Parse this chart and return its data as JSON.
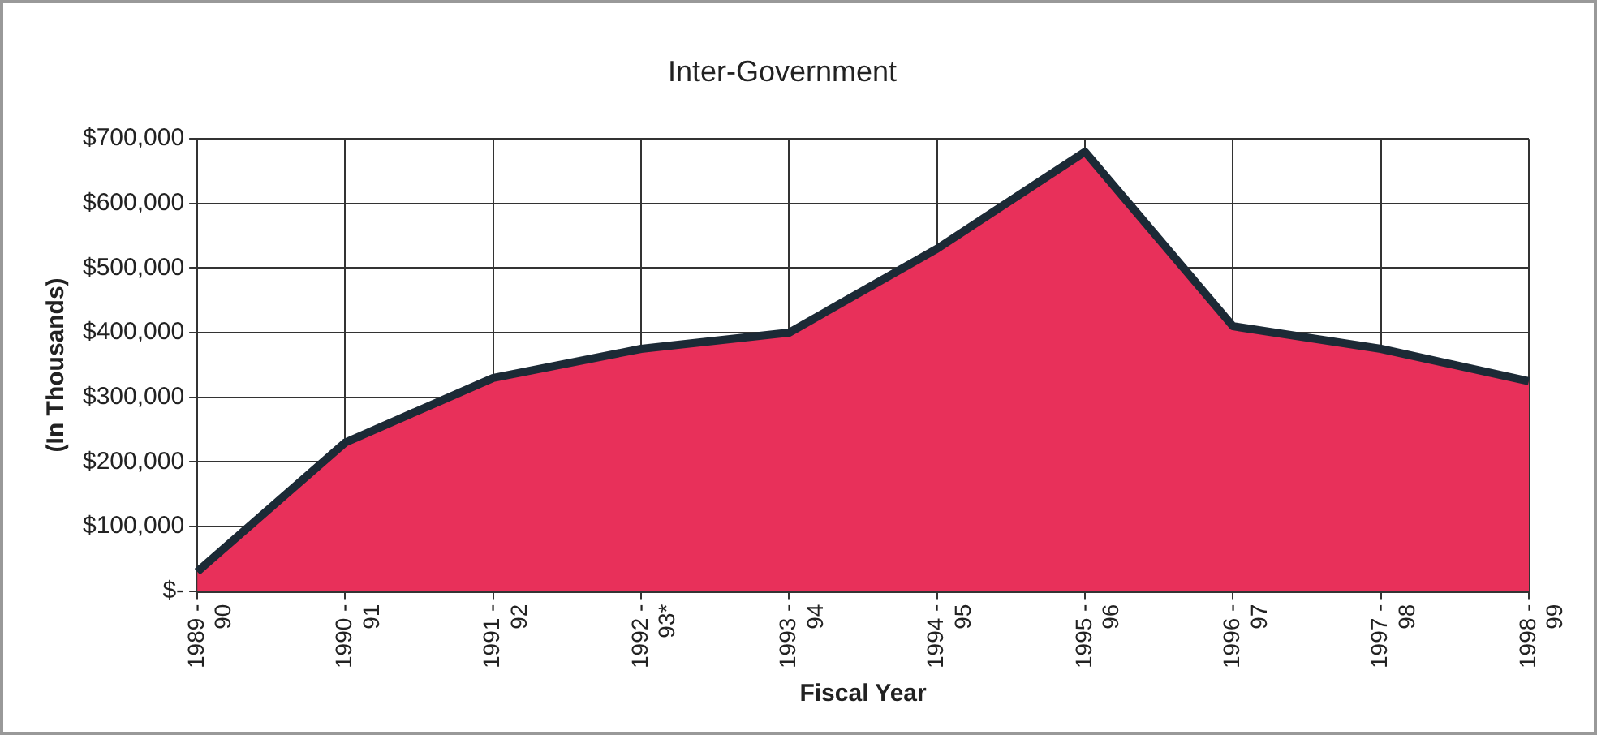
{
  "chart_data": {
    "type": "area",
    "title": "Inter-Government",
    "xlabel": "Fiscal Year",
    "ylabel": "(In Thousands)",
    "categories": [
      "1989 -\n90",
      "1990 -\n91",
      "1991 -\n92",
      "1992 -\n93*",
      "1993 -\n94",
      "1994 -\n95",
      "1995 -\n96",
      "1996 -\n97",
      "1997 -\n98",
      "1998 -\n99"
    ],
    "series": [
      {
        "color": "#e8305a",
        "values": [
          30000,
          230000,
          330000,
          375000,
          400000,
          530000,
          680000,
          410000,
          375000,
          325000
        ]
      }
    ],
    "ylim": [
      0,
      700000
    ],
    "yticks": [
      {
        "value": 0,
        "label": "$-"
      },
      {
        "value": 100000,
        "label": "$100,000"
      },
      {
        "value": 200000,
        "label": "$200,000"
      },
      {
        "value": 300000,
        "label": "$300,000"
      },
      {
        "value": 400000,
        "label": "$400,000"
      },
      {
        "value": 500000,
        "label": "$500,000"
      },
      {
        "value": 600000,
        "label": "$600,000"
      },
      {
        "value": 700000,
        "label": "$700,000"
      }
    ],
    "grid": true,
    "legend": false
  }
}
